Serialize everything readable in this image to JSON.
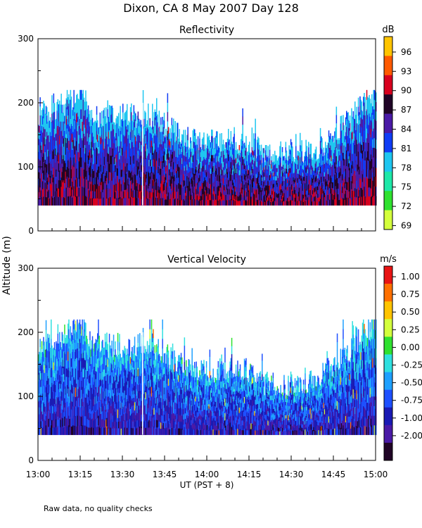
{
  "page": {
    "title": "Dixon, CA  8 May 2007  Day 128",
    "y_axis_label": "Altitude (m)",
    "x_axis_label": "UT  (PST + 8)",
    "footnote": "Raw data, no quality checks"
  },
  "colors": {
    "reflectivity_scale": [
      "#d4ff3c",
      "#2fe12f",
      "#1ee8a8",
      "#1ec6f0",
      "#0f3cf5",
      "#4a1aa6",
      "#200426",
      "#d8001e",
      "#ff5a00",
      "#ffc400"
    ],
    "velocity_scale": [
      "#200426",
      "#4a1aa6",
      "#1a1ab4",
      "#1e50ff",
      "#1ea0ff",
      "#2fe0e0",
      "#2fe12f",
      "#d4ff3c",
      "#ffc400",
      "#ff7000",
      "#e81414"
    ]
  },
  "chart_data": [
    {
      "type": "heatmap",
      "title": "Reflectivity",
      "colorbar_unit": "dB",
      "colorbar_ticks": [
        "96",
        "93",
        "90",
        "87",
        "84",
        "81",
        "78",
        "75",
        "72",
        "69"
      ],
      "x_ticks": [
        "13:00",
        "13:15",
        "13:30",
        "13:45",
        "14:00",
        "14:15",
        "14:30",
        "14:45",
        "15:00"
      ],
      "xlim": [
        "13:00",
        "15:00"
      ],
      "ylim": [
        0,
        300
      ],
      "y_ticks": [
        "0",
        "100",
        "200",
        "300"
      ],
      "data_extent_m": [
        40,
        220
      ],
      "typical_values_dB": {
        "low_levels_40_80m": 86,
        "mid_levels_80_140m": 83,
        "top_edge_140_200m": 79
      },
      "echo_top_m": [
        {
          "time": "13:00",
          "top": 180
        },
        {
          "time": "13:10",
          "top": 200
        },
        {
          "time": "13:15",
          "top": 220
        },
        {
          "time": "13:20",
          "top": 180
        },
        {
          "time": "13:30",
          "top": 180
        },
        {
          "time": "13:40",
          "top": 180
        },
        {
          "time": "13:50",
          "top": 150
        },
        {
          "time": "14:00",
          "top": 140
        },
        {
          "time": "14:15",
          "top": 140
        },
        {
          "time": "14:20",
          "top": 120
        },
        {
          "time": "14:30",
          "top": 120
        },
        {
          "time": "14:40",
          "top": 130
        },
        {
          "time": "14:50",
          "top": 170
        },
        {
          "time": "15:00",
          "top": 220
        }
      ]
    },
    {
      "type": "heatmap",
      "title": "Vertical Velocity",
      "colorbar_unit": "m/s",
      "colorbar_ticks": [
        "1.00",
        "0.75",
        "0.50",
        "0.25",
        "0.00",
        "-0.25",
        "-0.50",
        "-0.75",
        "-1.00",
        "-2.00"
      ],
      "x_ticks": [
        "13:00",
        "13:15",
        "13:30",
        "13:45",
        "14:00",
        "14:15",
        "14:30",
        "14:45",
        "15:00"
      ],
      "xlim": [
        "13:00",
        "15:00"
      ],
      "ylim": [
        0,
        300
      ],
      "y_ticks": [
        "0",
        "100",
        "200",
        "300"
      ],
      "data_extent_m": [
        40,
        220
      ],
      "typical_values_ms": {
        "low_levels_40_80m": -0.8,
        "mid_levels_80_140m": -0.4,
        "top_edge_140_200m": 0.0
      },
      "echo_top_m": [
        {
          "time": "13:00",
          "top": 180
        },
        {
          "time": "13:10",
          "top": 200
        },
        {
          "time": "13:15",
          "top": 220
        },
        {
          "time": "13:20",
          "top": 180
        },
        {
          "time": "13:30",
          "top": 180
        },
        {
          "time": "13:40",
          "top": 180
        },
        {
          "time": "13:50",
          "top": 150
        },
        {
          "time": "14:00",
          "top": 140
        },
        {
          "time": "14:15",
          "top": 140
        },
        {
          "time": "14:20",
          "top": 120
        },
        {
          "time": "14:30",
          "top": 120
        },
        {
          "time": "14:40",
          "top": 130
        },
        {
          "time": "14:50",
          "top": 170
        },
        {
          "time": "15:00",
          "top": 220
        }
      ]
    }
  ]
}
